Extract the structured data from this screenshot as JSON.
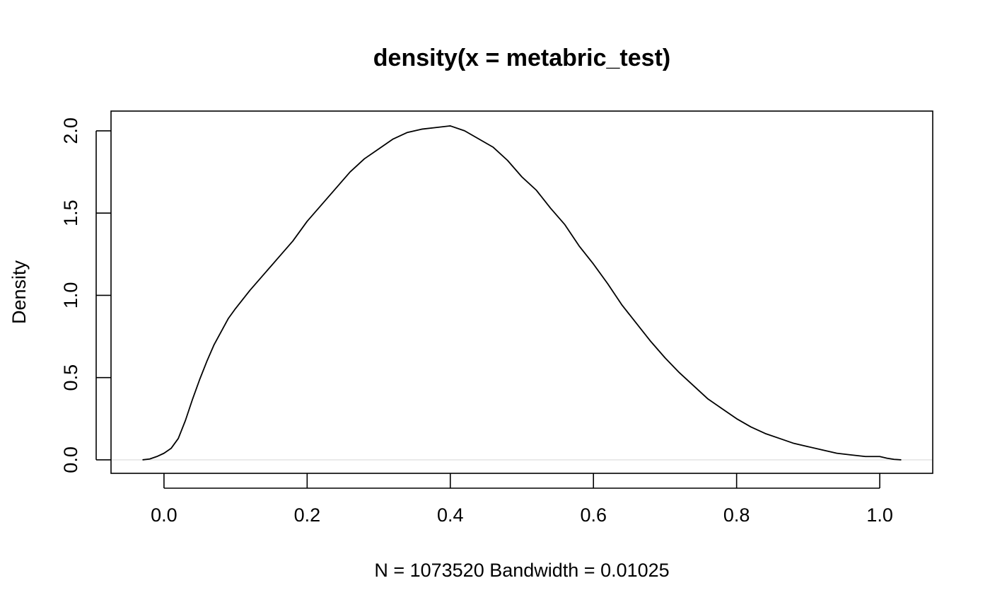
{
  "chart_data": {
    "type": "line",
    "title": "density(x = metabric_test)",
    "xlabel": "N = 1073520   Bandwidth = 0.01025",
    "ylabel": "Density",
    "xlim": [
      -0.074,
      1.074
    ],
    "ylim": [
      -0.082,
      2.12
    ],
    "xticks": [
      0.0,
      0.2,
      0.4,
      0.6,
      0.8,
      1.0
    ],
    "xtick_labels": [
      "0.0",
      "0.2",
      "0.4",
      "0.6",
      "0.8",
      "1.0"
    ],
    "yticks": [
      0.0,
      0.5,
      1.0,
      1.5,
      2.0
    ],
    "ytick_labels": [
      "0.0",
      "0.5",
      "1.0",
      "1.5",
      "2.0"
    ],
    "grid": false,
    "baseline": 0,
    "baseline_color": "#d9d9d9",
    "line_color": "#000000",
    "series": [
      {
        "x": [
          -0.03,
          -0.02,
          -0.01,
          0.0,
          0.01,
          0.02,
          0.03,
          0.04,
          0.05,
          0.06,
          0.07,
          0.08,
          0.09,
          0.1,
          0.12,
          0.14,
          0.16,
          0.18,
          0.2,
          0.22,
          0.24,
          0.26,
          0.28,
          0.3,
          0.32,
          0.34,
          0.36,
          0.38,
          0.4,
          0.42,
          0.44,
          0.46,
          0.48,
          0.5,
          0.52,
          0.54,
          0.56,
          0.58,
          0.6,
          0.62,
          0.64,
          0.66,
          0.68,
          0.7,
          0.72,
          0.74,
          0.76,
          0.78,
          0.8,
          0.82,
          0.84,
          0.86,
          0.88,
          0.9,
          0.92,
          0.94,
          0.96,
          0.98,
          1.0,
          1.01,
          1.02,
          1.03
        ],
        "y": [
          0.0,
          0.005,
          0.02,
          0.04,
          0.07,
          0.13,
          0.24,
          0.37,
          0.49,
          0.6,
          0.7,
          0.78,
          0.86,
          0.92,
          1.03,
          1.13,
          1.23,
          1.33,
          1.45,
          1.55,
          1.65,
          1.75,
          1.83,
          1.89,
          1.95,
          1.99,
          2.01,
          2.02,
          2.03,
          2.0,
          1.95,
          1.9,
          1.82,
          1.72,
          1.64,
          1.53,
          1.43,
          1.3,
          1.19,
          1.07,
          0.94,
          0.83,
          0.72,
          0.62,
          0.53,
          0.45,
          0.37,
          0.31,
          0.25,
          0.2,
          0.16,
          0.13,
          0.1,
          0.08,
          0.06,
          0.04,
          0.03,
          0.02,
          0.02,
          0.01,
          0.003,
          0.0
        ]
      }
    ]
  }
}
